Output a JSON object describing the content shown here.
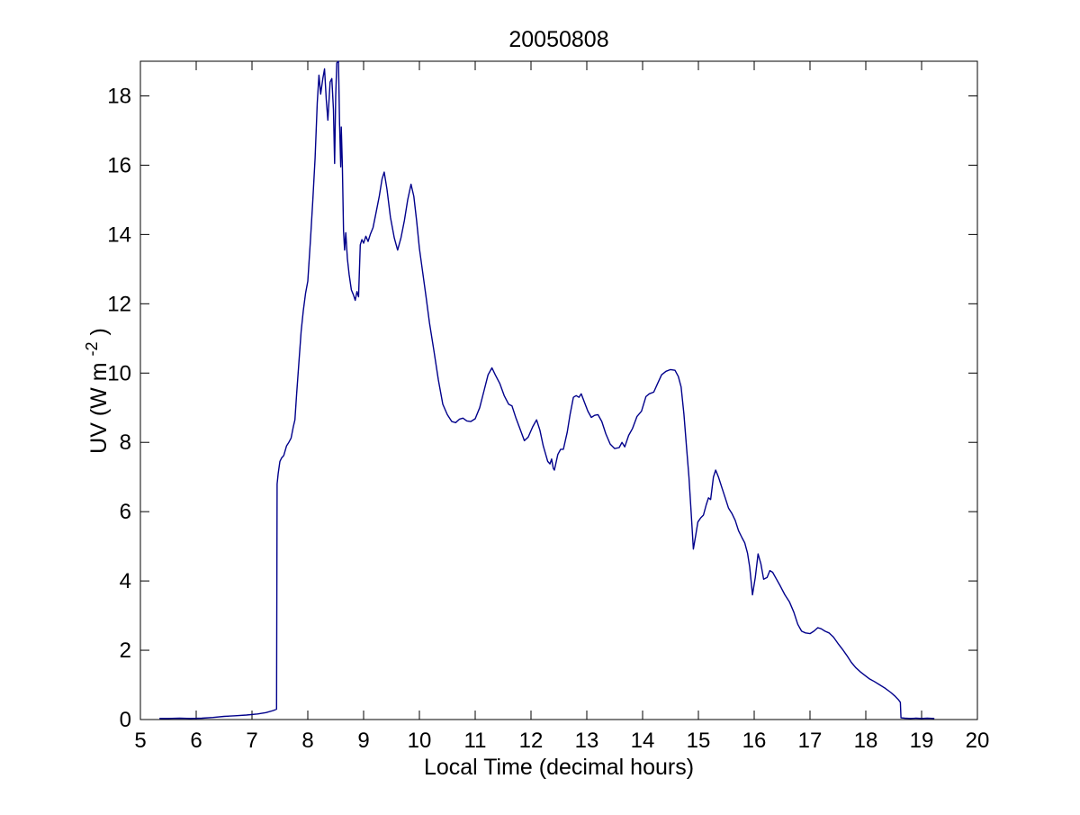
{
  "figure": {
    "background": "#ffffff",
    "axis_color": "#000000"
  },
  "chart_data": {
    "type": "line",
    "title": "20050808",
    "xlabel": "Local Time (decimal hours)",
    "ylabel": "UV (W m^-2)",
    "ylabel_parts": {
      "pre": "UV (W m",
      "sup": "-2",
      "post": ")"
    },
    "xlim": [
      5,
      20
    ],
    "ylim": [
      0,
      19
    ],
    "xticks": [
      5,
      6,
      7,
      8,
      9,
      10,
      11,
      12,
      13,
      14,
      15,
      16,
      17,
      18,
      19,
      20
    ],
    "yticks": [
      0,
      2,
      4,
      6,
      8,
      10,
      12,
      14,
      16,
      18
    ],
    "grid": false,
    "legend_position": "none",
    "line_color": "#00008b",
    "series": [
      {
        "name": "UV",
        "points": [
          [
            5.35,
            0.03
          ],
          [
            5.5,
            0.03
          ],
          [
            5.7,
            0.04
          ],
          [
            5.9,
            0.03
          ],
          [
            6.1,
            0.04
          ],
          [
            6.3,
            0.06
          ],
          [
            6.5,
            0.09
          ],
          [
            6.7,
            0.11
          ],
          [
            6.9,
            0.13
          ],
          [
            7.1,
            0.16
          ],
          [
            7.25,
            0.2
          ],
          [
            7.38,
            0.26
          ],
          [
            7.44,
            0.3
          ],
          [
            7.45,
            6.8
          ],
          [
            7.47,
            7.1
          ],
          [
            7.5,
            7.45
          ],
          [
            7.53,
            7.55
          ],
          [
            7.57,
            7.62
          ],
          [
            7.62,
            7.9
          ],
          [
            7.66,
            8.0
          ],
          [
            7.7,
            8.12
          ],
          [
            7.74,
            8.45
          ],
          [
            7.77,
            8.65
          ],
          [
            7.8,
            9.4
          ],
          [
            7.84,
            10.3
          ],
          [
            7.88,
            11.2
          ],
          [
            7.92,
            11.8
          ],
          [
            7.96,
            12.3
          ],
          [
            8.0,
            12.65
          ],
          [
            8.05,
            13.9
          ],
          [
            8.09,
            15.0
          ],
          [
            8.13,
            16.2
          ],
          [
            8.17,
            17.8
          ],
          [
            8.2,
            18.6
          ],
          [
            8.23,
            18.05
          ],
          [
            8.27,
            18.5
          ],
          [
            8.3,
            18.78
          ],
          [
            8.33,
            17.9
          ],
          [
            8.36,
            17.3
          ],
          [
            8.4,
            18.4
          ],
          [
            8.43,
            18.5
          ],
          [
            8.46,
            17.6
          ],
          [
            8.48,
            16.05
          ],
          [
            8.5,
            18.0
          ],
          [
            8.52,
            18.95
          ],
          [
            8.55,
            19.0
          ],
          [
            8.57,
            17.2
          ],
          [
            8.59,
            15.95
          ],
          [
            8.6,
            17.1
          ],
          [
            8.62,
            16.0
          ],
          [
            8.64,
            14.1
          ],
          [
            8.66,
            13.55
          ],
          [
            8.68,
            14.05
          ],
          [
            8.71,
            13.3
          ],
          [
            8.74,
            12.85
          ],
          [
            8.78,
            12.4
          ],
          [
            8.82,
            12.25
          ],
          [
            8.85,
            12.1
          ],
          [
            8.88,
            12.35
          ],
          [
            8.91,
            12.2
          ],
          [
            8.94,
            13.7
          ],
          [
            8.97,
            13.85
          ],
          [
            9.0,
            13.75
          ],
          [
            9.04,
            13.95
          ],
          [
            9.08,
            13.8
          ],
          [
            9.12,
            14.0
          ],
          [
            9.17,
            14.2
          ],
          [
            9.22,
            14.6
          ],
          [
            9.28,
            15.1
          ],
          [
            9.33,
            15.6
          ],
          [
            9.37,
            15.8
          ],
          [
            9.42,
            15.3
          ],
          [
            9.48,
            14.5
          ],
          [
            9.55,
            13.9
          ],
          [
            9.61,
            13.55
          ],
          [
            9.67,
            13.9
          ],
          [
            9.73,
            14.4
          ],
          [
            9.79,
            15.0
          ],
          [
            9.85,
            15.45
          ],
          [
            9.9,
            15.1
          ],
          [
            9.95,
            14.4
          ],
          [
            10.0,
            13.6
          ],
          [
            10.06,
            12.9
          ],
          [
            10.12,
            12.2
          ],
          [
            10.18,
            11.45
          ],
          [
            10.26,
            10.65
          ],
          [
            10.34,
            9.8
          ],
          [
            10.42,
            9.1
          ],
          [
            10.5,
            8.8
          ],
          [
            10.58,
            8.6
          ],
          [
            10.65,
            8.57
          ],
          [
            10.72,
            8.67
          ],
          [
            10.78,
            8.7
          ],
          [
            10.85,
            8.62
          ],
          [
            10.92,
            8.6
          ],
          [
            11.0,
            8.68
          ],
          [
            11.08,
            9.0
          ],
          [
            11.16,
            9.5
          ],
          [
            11.23,
            9.95
          ],
          [
            11.3,
            10.15
          ],
          [
            11.36,
            9.95
          ],
          [
            11.44,
            9.7
          ],
          [
            11.52,
            9.35
          ],
          [
            11.6,
            9.1
          ],
          [
            11.66,
            9.05
          ],
          [
            11.73,
            8.7
          ],
          [
            11.8,
            8.4
          ],
          [
            11.88,
            8.05
          ],
          [
            11.95,
            8.15
          ],
          [
            12.03,
            8.45
          ],
          [
            12.1,
            8.65
          ],
          [
            12.16,
            8.35
          ],
          [
            12.22,
            7.9
          ],
          [
            12.3,
            7.45
          ],
          [
            12.34,
            7.38
          ],
          [
            12.37,
            7.52
          ],
          [
            12.4,
            7.25
          ],
          [
            12.42,
            7.2
          ],
          [
            12.48,
            7.65
          ],
          [
            12.53,
            7.8
          ],
          [
            12.58,
            7.8
          ],
          [
            12.65,
            8.3
          ],
          [
            12.7,
            8.8
          ],
          [
            12.76,
            9.3
          ],
          [
            12.81,
            9.35
          ],
          [
            12.86,
            9.3
          ],
          [
            12.9,
            9.4
          ],
          [
            12.96,
            9.15
          ],
          [
            13.02,
            8.9
          ],
          [
            13.08,
            8.72
          ],
          [
            13.14,
            8.78
          ],
          [
            13.2,
            8.8
          ],
          [
            13.27,
            8.6
          ],
          [
            13.34,
            8.25
          ],
          [
            13.42,
            7.95
          ],
          [
            13.5,
            7.82
          ],
          [
            13.58,
            7.85
          ],
          [
            13.63,
            8.0
          ],
          [
            13.68,
            7.87
          ],
          [
            13.75,
            8.2
          ],
          [
            13.82,
            8.4
          ],
          [
            13.9,
            8.75
          ],
          [
            13.98,
            8.9
          ],
          [
            14.06,
            9.32
          ],
          [
            14.12,
            9.4
          ],
          [
            14.2,
            9.45
          ],
          [
            14.27,
            9.7
          ],
          [
            14.34,
            9.95
          ],
          [
            14.42,
            10.05
          ],
          [
            14.5,
            10.1
          ],
          [
            14.58,
            10.08
          ],
          [
            14.64,
            9.9
          ],
          [
            14.69,
            9.6
          ],
          [
            14.74,
            8.82
          ],
          [
            14.79,
            7.8
          ],
          [
            14.83,
            7.0
          ],
          [
            14.87,
            6.0
          ],
          [
            14.91,
            4.92
          ],
          [
            14.95,
            5.3
          ],
          [
            14.99,
            5.7
          ],
          [
            15.04,
            5.82
          ],
          [
            15.09,
            5.9
          ],
          [
            15.14,
            6.2
          ],
          [
            15.18,
            6.4
          ],
          [
            15.22,
            6.35
          ],
          [
            15.27,
            7.0
          ],
          [
            15.31,
            7.2
          ],
          [
            15.36,
            7.0
          ],
          [
            15.42,
            6.7
          ],
          [
            15.48,
            6.4
          ],
          [
            15.54,
            6.1
          ],
          [
            15.6,
            5.95
          ],
          [
            15.66,
            5.75
          ],
          [
            15.72,
            5.45
          ],
          [
            15.78,
            5.25
          ],
          [
            15.83,
            5.1
          ],
          [
            15.88,
            4.8
          ],
          [
            15.92,
            4.4
          ],
          [
            15.97,
            3.6
          ],
          [
            16.02,
            4.1
          ],
          [
            16.07,
            4.78
          ],
          [
            16.12,
            4.5
          ],
          [
            16.17,
            4.05
          ],
          [
            16.23,
            4.1
          ],
          [
            16.28,
            4.3
          ],
          [
            16.33,
            4.25
          ],
          [
            16.4,
            4.05
          ],
          [
            16.47,
            3.85
          ],
          [
            16.55,
            3.6
          ],
          [
            16.63,
            3.4
          ],
          [
            16.71,
            3.1
          ],
          [
            16.78,
            2.75
          ],
          [
            16.85,
            2.55
          ],
          [
            16.92,
            2.5
          ],
          [
            17.0,
            2.48
          ],
          [
            17.07,
            2.55
          ],
          [
            17.14,
            2.65
          ],
          [
            17.2,
            2.62
          ],
          [
            17.27,
            2.55
          ],
          [
            17.34,
            2.5
          ],
          [
            17.42,
            2.38
          ],
          [
            17.5,
            2.2
          ],
          [
            17.58,
            2.03
          ],
          [
            17.66,
            1.85
          ],
          [
            17.74,
            1.65
          ],
          [
            17.82,
            1.5
          ],
          [
            17.9,
            1.38
          ],
          [
            17.98,
            1.28
          ],
          [
            18.06,
            1.18
          ],
          [
            18.15,
            1.1
          ],
          [
            18.25,
            1.0
          ],
          [
            18.35,
            0.9
          ],
          [
            18.45,
            0.78
          ],
          [
            18.52,
            0.68
          ],
          [
            18.58,
            0.58
          ],
          [
            18.62,
            0.5
          ],
          [
            18.63,
            0.05
          ],
          [
            18.7,
            0.04
          ],
          [
            18.8,
            0.03
          ],
          [
            18.9,
            0.04
          ],
          [
            19.0,
            0.03
          ],
          [
            19.1,
            0.04
          ],
          [
            19.22,
            0.03
          ]
        ]
      }
    ]
  }
}
